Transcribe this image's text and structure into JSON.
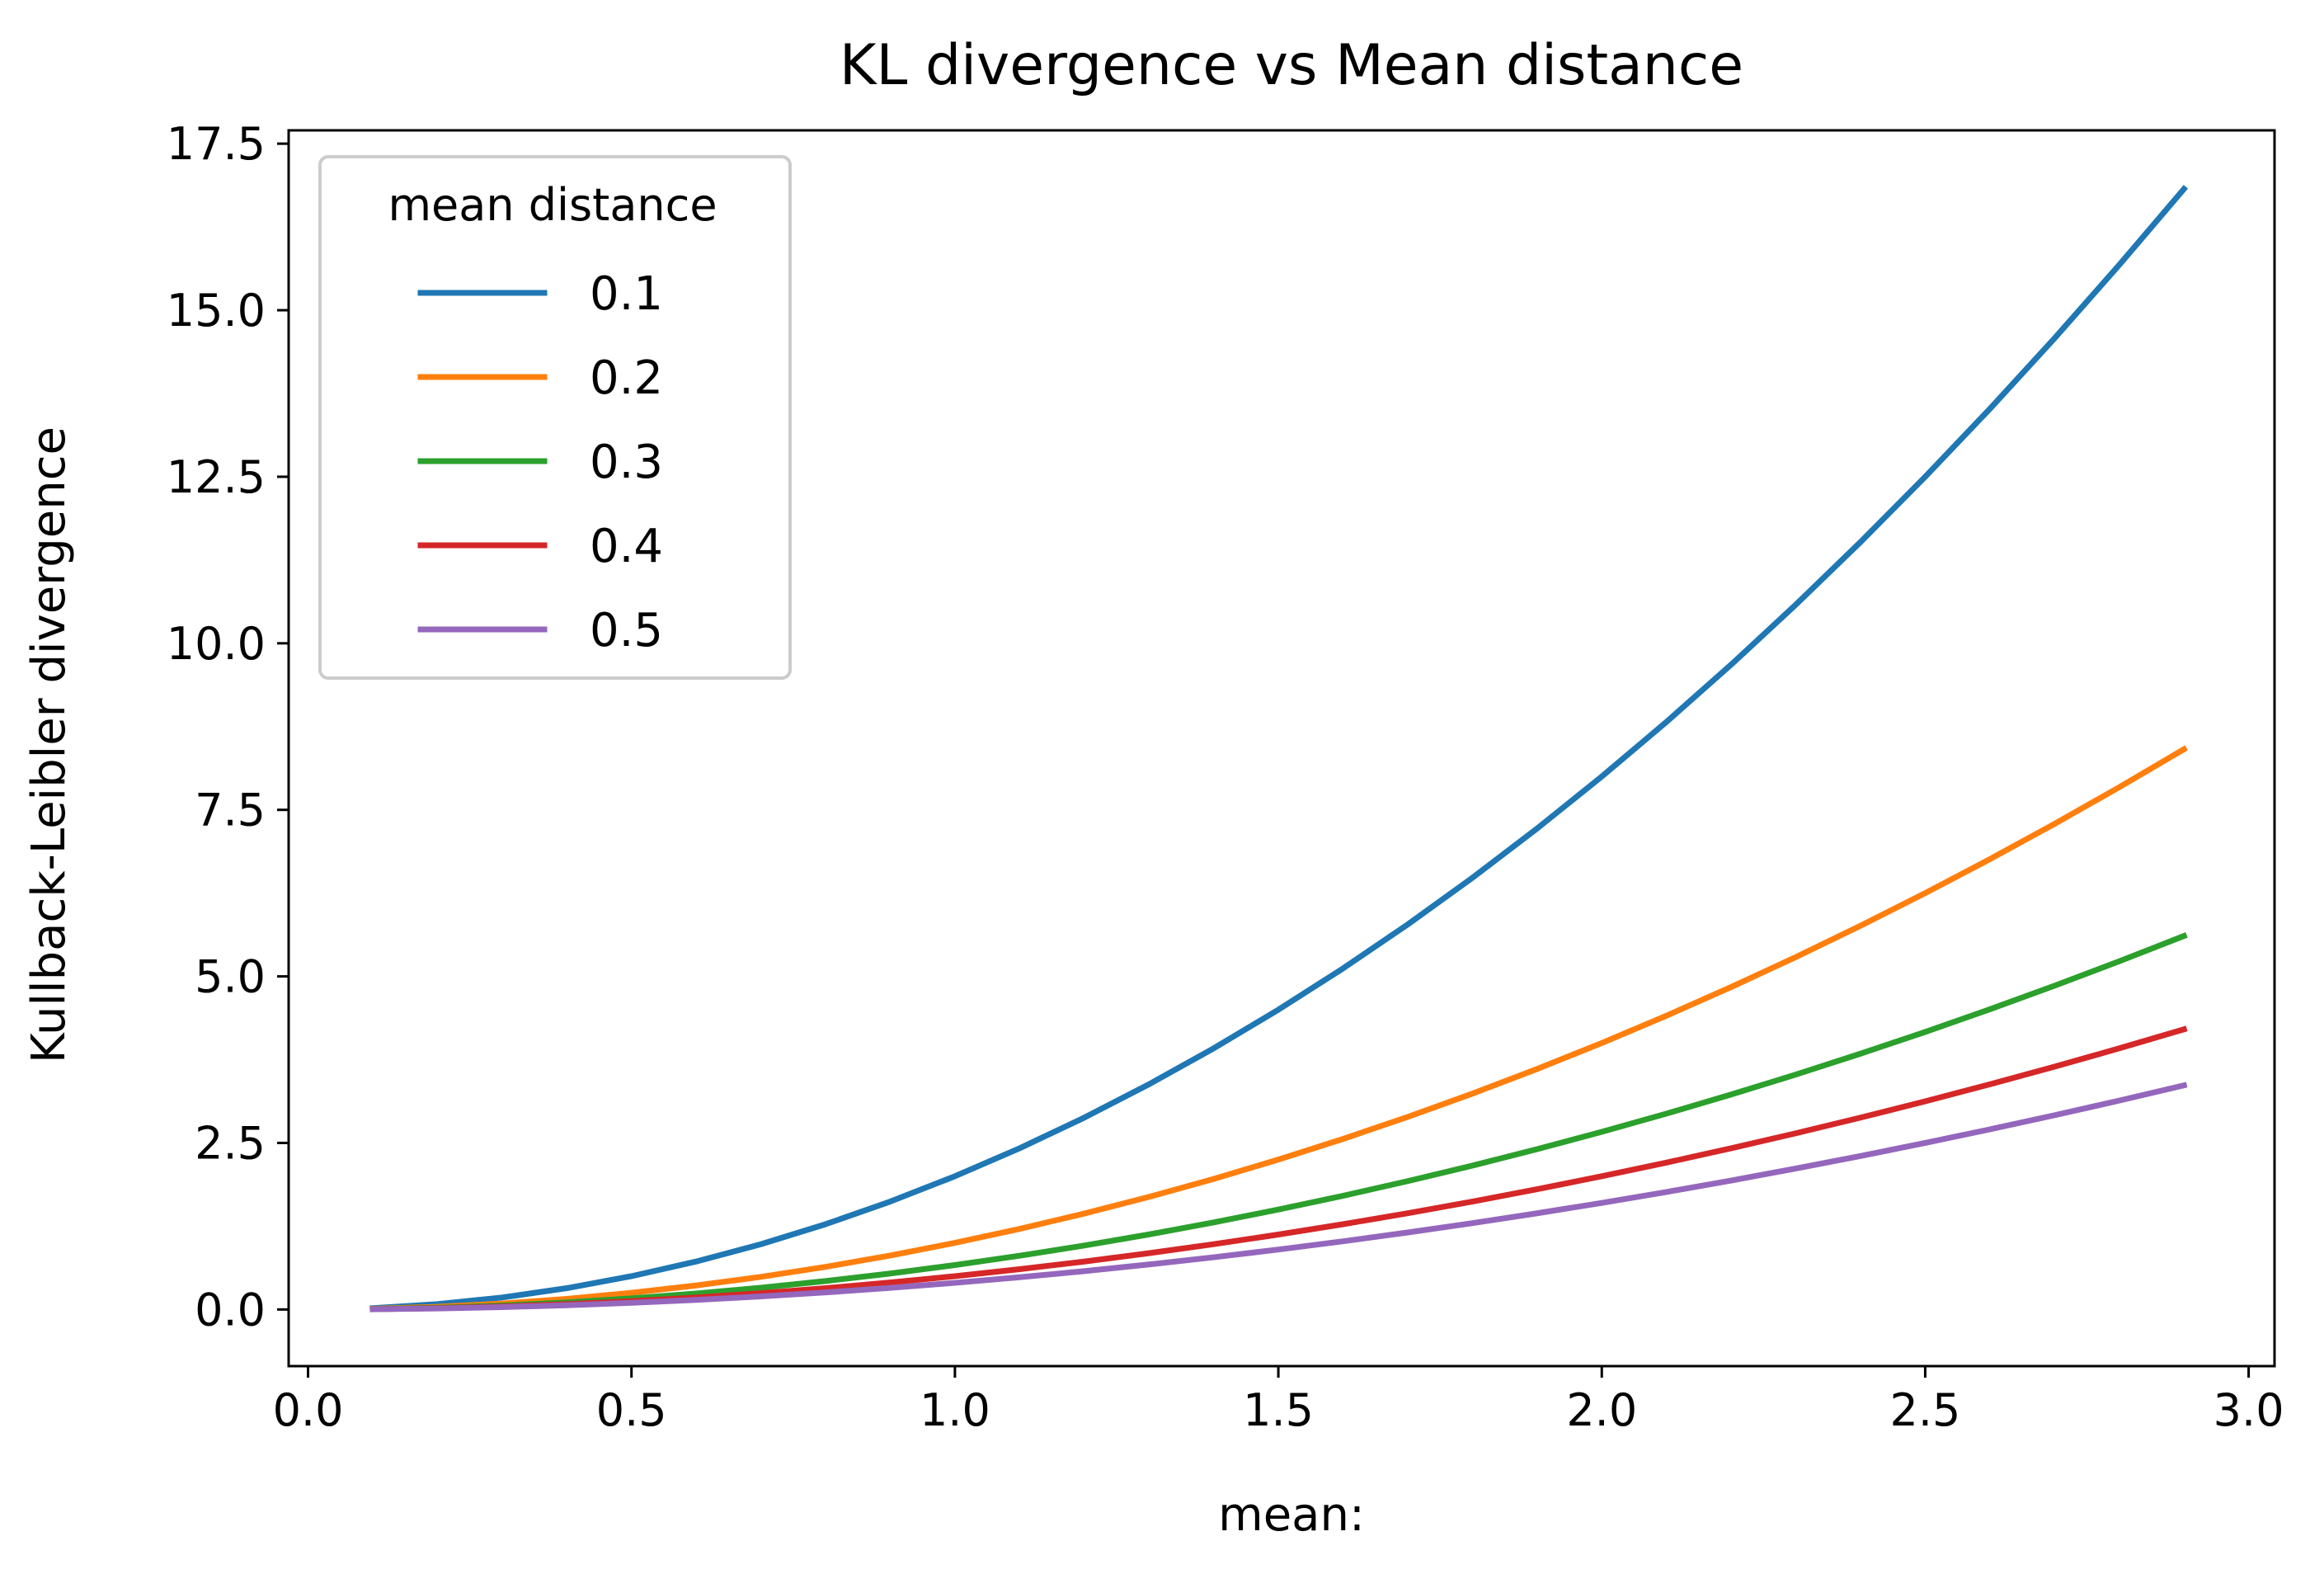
{
  "chart_data": {
    "type": "line",
    "title": "KL divergence vs Mean distance",
    "xlabel": "mean:",
    "ylabel": "Kullback-Leibler divergence",
    "xlim": [
      -0.03,
      3.04
    ],
    "ylim": [
      -0.85,
      17.7
    ],
    "xticks": [
      0.0,
      0.5,
      1.0,
      1.5,
      2.0,
      2.5,
      3.0
    ],
    "xtick_labels": [
      "0.0",
      "0.5",
      "1.0",
      "1.5",
      "2.0",
      "2.5",
      "3.0"
    ],
    "yticks": [
      0.0,
      2.5,
      5.0,
      7.5,
      10.0,
      12.5,
      15.0,
      17.5
    ],
    "ytick_labels": [
      "0.0",
      "2.5",
      "5.0",
      "7.5",
      "10.0",
      "12.5",
      "15.0",
      "17.5"
    ],
    "grid": false,
    "legend": {
      "title": "mean distance",
      "placement": "upper-left"
    },
    "x": [
      0.1,
      0.2,
      0.3,
      0.4,
      0.5,
      0.6,
      0.7,
      0.8,
      0.9,
      1.0,
      1.1,
      1.2,
      1.3,
      1.4,
      1.5,
      1.6,
      1.7,
      1.8,
      1.9,
      2.0,
      2.1,
      2.2,
      2.3,
      2.4,
      2.5,
      2.6,
      2.7,
      2.8,
      2.9
    ],
    "series": [
      {
        "name": "0.1",
        "color": "#1f77b4",
        "values": [
          0.02,
          0.08,
          0.18,
          0.32,
          0.5,
          0.72,
          0.98,
          1.28,
          1.62,
          2.0,
          2.42,
          2.88,
          3.38,
          3.92,
          4.5,
          5.12,
          5.78,
          6.48,
          7.22,
          8.0,
          8.82,
          9.68,
          10.58,
          11.52,
          12.5,
          13.52,
          14.58,
          15.68,
          16.82
        ]
      },
      {
        "name": "0.2",
        "color": "#ff7f0e",
        "values": [
          0.01,
          0.04,
          0.09,
          0.16,
          0.25,
          0.36,
          0.49,
          0.64,
          0.81,
          1.0,
          1.21,
          1.44,
          1.69,
          1.96,
          2.25,
          2.56,
          2.89,
          3.24,
          3.61,
          4.0,
          4.41,
          4.84,
          5.29,
          5.76,
          6.25,
          6.76,
          7.29,
          7.84,
          8.41
        ]
      },
      {
        "name": "0.3",
        "color": "#2ca02c",
        "values": [
          0.0067,
          0.0267,
          0.06,
          0.1067,
          0.1667,
          0.24,
          0.3267,
          0.4267,
          0.54,
          0.6667,
          0.8067,
          0.96,
          1.1267,
          1.3067,
          1.5,
          1.7067,
          1.9267,
          2.16,
          2.4067,
          2.6667,
          2.94,
          3.2267,
          3.5267,
          3.84,
          4.1667,
          4.5067,
          4.86,
          5.2267,
          5.6067
        ]
      },
      {
        "name": "0.4",
        "color": "#d62728",
        "values": [
          0.005,
          0.02,
          0.045,
          0.08,
          0.125,
          0.18,
          0.245,
          0.32,
          0.405,
          0.5,
          0.605,
          0.72,
          0.845,
          0.98,
          1.125,
          1.28,
          1.445,
          1.62,
          1.805,
          2.0,
          2.205,
          2.42,
          2.645,
          2.88,
          3.125,
          3.38,
          3.645,
          3.92,
          4.205
        ]
      },
      {
        "name": "0.5",
        "color": "#9467bd",
        "values": [
          0.004,
          0.016,
          0.036,
          0.064,
          0.1,
          0.144,
          0.196,
          0.256,
          0.324,
          0.4,
          0.484,
          0.576,
          0.676,
          0.784,
          0.9,
          1.024,
          1.156,
          1.296,
          1.444,
          1.6,
          1.764,
          1.936,
          2.116,
          2.304,
          2.5,
          2.704,
          2.916,
          3.136,
          3.364
        ]
      }
    ]
  }
}
